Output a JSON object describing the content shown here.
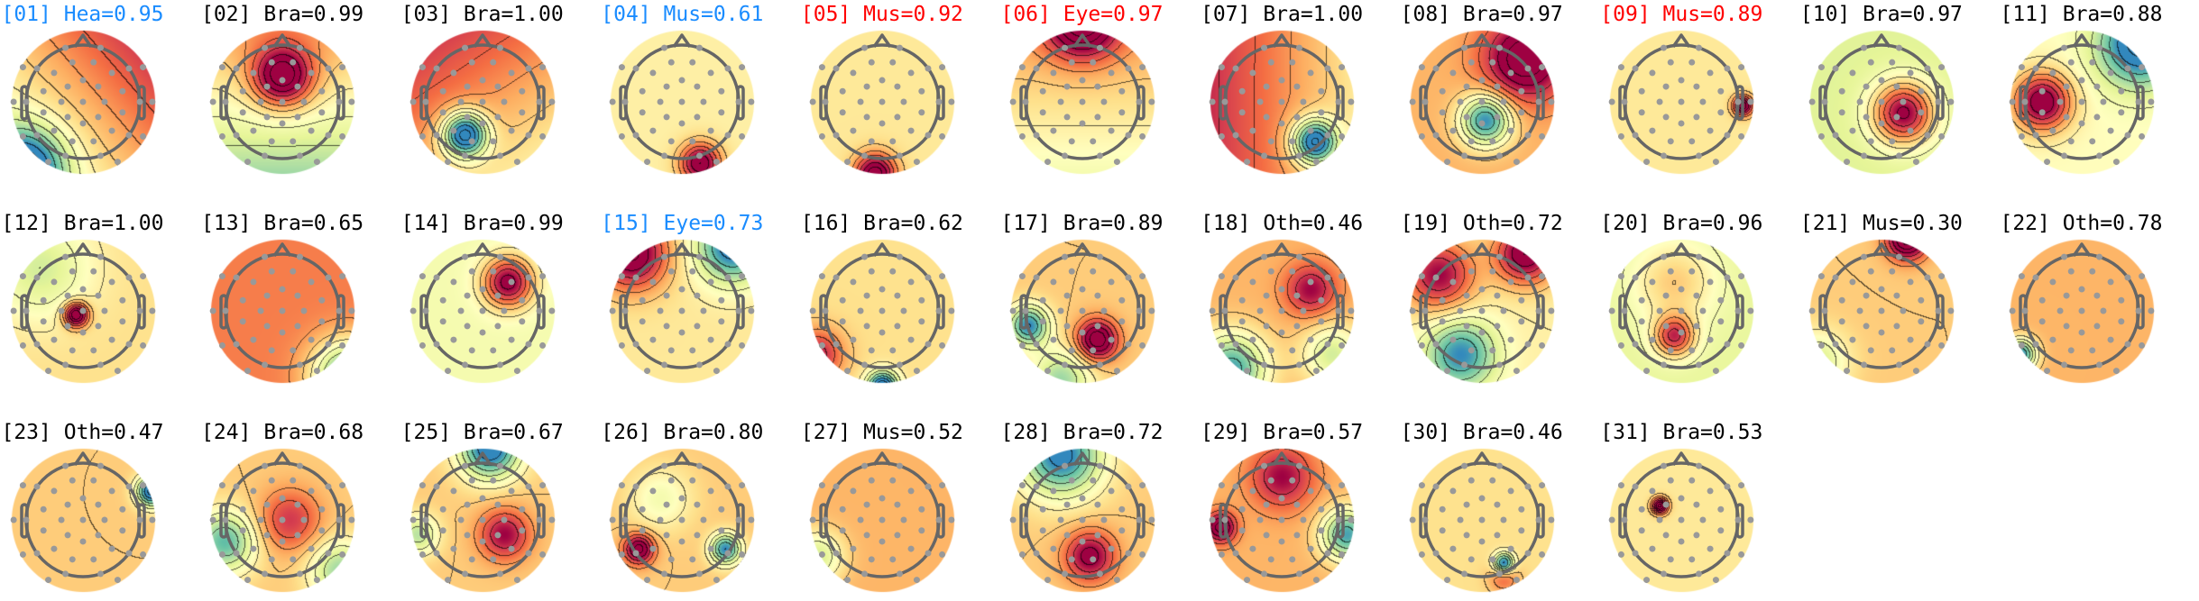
{
  "colors": {
    "default": "#000000",
    "highlight_blue": "#1a8cff",
    "highlight_red": "#ff0000"
  },
  "colormap": [
    "#3288bd",
    "#66c2a5",
    "#abdda4",
    "#e6f598",
    "#ffffbf",
    "#fee08b",
    "#fdae61",
    "#f46d43",
    "#d53e4f",
    "#9e0142"
  ],
  "components": [
    {
      "title": "[01] Hea=0.95",
      "color": "highlight_blue"
    },
    {
      "title": "[02] Bra=0.99",
      "color": "default"
    },
    {
      "title": "[03] Bra=1.00",
      "color": "default"
    },
    {
      "title": "[04] Mus=0.61",
      "color": "highlight_blue"
    },
    {
      "title": "[05] Mus=0.92",
      "color": "highlight_red"
    },
    {
      "title": "[06] Eye=0.97",
      "color": "highlight_red"
    },
    {
      "title": "[07] Bra=1.00",
      "color": "default"
    },
    {
      "title": "[08] Bra=0.97",
      "color": "default"
    },
    {
      "title": "[09] Mus=0.89",
      "color": "highlight_red"
    },
    {
      "title": "[10] Bra=0.97",
      "color": "default"
    },
    {
      "title": "[11] Bra=0.88",
      "color": "default"
    },
    {
      "title": "[12] Bra=1.00",
      "color": "default"
    },
    {
      "title": "[13] Bra=0.65",
      "color": "default"
    },
    {
      "title": "[14] Bra=0.99",
      "color": "default"
    },
    {
      "title": "[15] Eye=0.73",
      "color": "highlight_blue"
    },
    {
      "title": "[16] Bra=0.62",
      "color": "default"
    },
    {
      "title": "[17] Bra=0.89",
      "color": "default"
    },
    {
      "title": "[18] Oth=0.46",
      "color": "default"
    },
    {
      "title": "[19] Oth=0.72",
      "color": "default"
    },
    {
      "title": "[20] Bra=0.96",
      "color": "default"
    },
    {
      "title": "[21] Mus=0.30",
      "color": "default"
    },
    {
      "title": "[22] Oth=0.78",
      "color": "default"
    },
    {
      "title": "[23] Oth=0.47",
      "color": "default"
    },
    {
      "title": "[24] Bra=0.68",
      "color": "default"
    },
    {
      "title": "[25] Bra=0.67",
      "color": "default"
    },
    {
      "title": "[26] Bra=0.80",
      "color": "default"
    },
    {
      "title": "[27] Mus=0.52",
      "color": "default"
    },
    {
      "title": "[28] Bra=0.72",
      "color": "default"
    },
    {
      "title": "[29] Bra=0.57",
      "color": "default"
    },
    {
      "title": "[30] Bra=0.46",
      "color": "default"
    },
    {
      "title": "[31] Bra=0.53",
      "color": "default"
    }
  ]
}
